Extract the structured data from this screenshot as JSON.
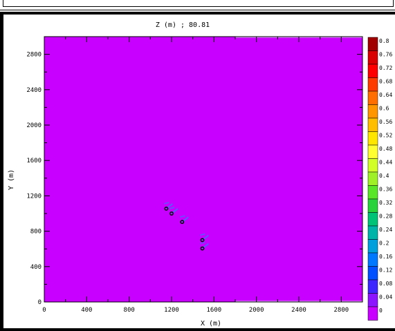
{
  "chart_data": {
    "type": "heatmap",
    "title": "Z (m) ; 80.81",
    "xlabel": "X (m)",
    "ylabel": "Y (m)",
    "xlim": [
      0,
      3000
    ],
    "ylim": [
      0,
      3000
    ],
    "xticks": [
      0,
      400,
      800,
      1200,
      1600,
      2000,
      2400,
      2800
    ],
    "yticks": [
      0,
      400,
      800,
      1200,
      1600,
      2000,
      2400,
      2800
    ],
    "field_value": 0,
    "points": [
      {
        "x": 1150,
        "y": 1055
      },
      {
        "x": 1200,
        "y": 1000
      },
      {
        "x": 1300,
        "y": 905
      },
      {
        "x": 1490,
        "y": 700
      },
      {
        "x": 1490,
        "y": 605
      }
    ],
    "colorbar": {
      "min": 0,
      "max": 0.8,
      "labels": [
        "0.8",
        "0.76",
        "0.72",
        "0.68",
        "0.64",
        "0.6",
        "0.56",
        "0.52",
        "0.48",
        "0.44",
        "0.4",
        "0.36",
        "0.32",
        "0.28",
        "0.24",
        "0.2",
        "0.16",
        "0.12",
        "0.08",
        "0.04",
        "0"
      ],
      "colors": [
        "#a00000",
        "#d80000",
        "#ff0000",
        "#ff3c00",
        "#ff6e00",
        "#ff9600",
        "#ffbe00",
        "#ffe600",
        "#ffff32",
        "#d2ff28",
        "#a0f028",
        "#5ae628",
        "#28d23c",
        "#00c378",
        "#00b4aa",
        "#00a0dc",
        "#0078ff",
        "#0050ff",
        "#3c28ff",
        "#8c14ff",
        "#c800ff"
      ]
    },
    "fill_color": "#c800ff",
    "grid": false,
    "legend": "right"
  }
}
